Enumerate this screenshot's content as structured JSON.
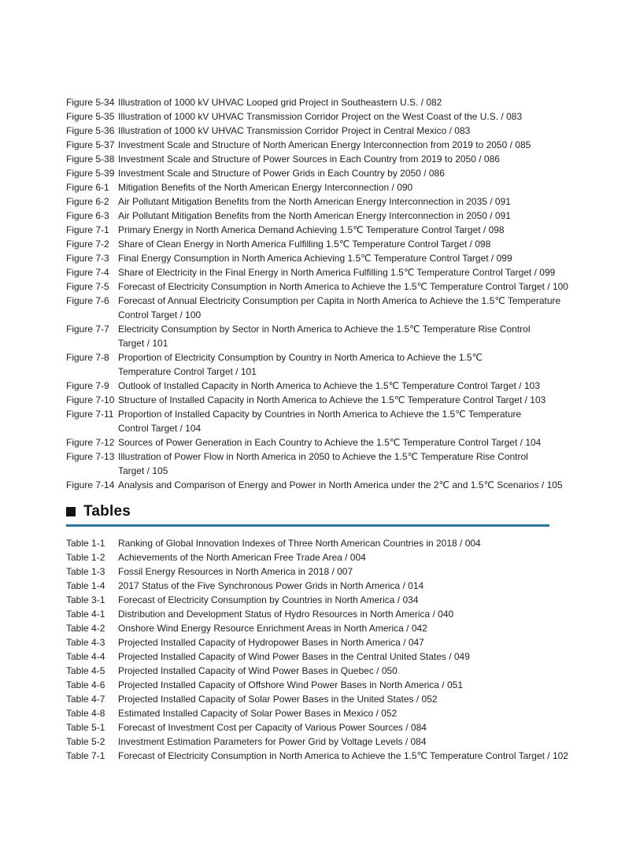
{
  "page": {
    "background_color": "#ffffff",
    "text_color": "#1e1e1e",
    "rule_color": "#2e739f"
  },
  "figures_list": {
    "items": [
      {
        "label": "Figure 5-34",
        "title": "Illustration of 1000 kV UHVAC Looped grid Project in Southeastern U.S. / 082"
      },
      {
        "label": "Figure 5-35",
        "title": "Illustration of 1000 kV UHVAC Transmission Corridor Project on the West Coast of the U.S. / 083"
      },
      {
        "label": "Figure 5-36",
        "title": "Illustration of 1000 kV UHVAC Transmission Corridor Project in Central Mexico / 083"
      },
      {
        "label": "Figure 5-37",
        "title": "Investment Scale and Structure of North American Energy Interconnection from 2019 to 2050 / 085"
      },
      {
        "label": "Figure 5-38",
        "title": "Investment Scale and Structure of Power Sources in Each Country from 2019 to 2050 / 086"
      },
      {
        "label": "Figure 5-39",
        "title": "Investment Scale and Structure of Power Grids in Each Country by 2050 / 086"
      },
      {
        "label": "Figure 6-1",
        "title": "Mitigation Benefits of the North American Energy Interconnection / 090"
      },
      {
        "label": "Figure 6-2",
        "title": "Air Pollutant Mitigation Benefits from the North American Energy Interconnection in 2035 / 091"
      },
      {
        "label": "Figure 6-3",
        "title": "Air Pollutant Mitigation Benefits from the North American Energy Interconnection in 2050 / 091"
      },
      {
        "label": "Figure 7-1",
        "title": "Primary Energy in North America Demand Achieving 1.5℃  Temperature Control Target / 098"
      },
      {
        "label": "Figure 7-2",
        "title": "Share of Clean Energy in North America Fulfilling 1.5℃  Temperature Control Target / 098"
      },
      {
        "label": "Figure 7-3",
        "title": "Final Energy Consumption in North America Achieving 1.5℃  Temperature Control Target / 099"
      },
      {
        "label": "Figure 7-4",
        "title": "Share of Electricity in the Final Energy in North America Fulfilling 1.5℃  Temperature Control Target / 099"
      },
      {
        "label": "Figure 7-5",
        "title": "Forecast of Electricity Consumption in North America to Achieve the 1.5℃  Temperature Control Target / 100"
      },
      {
        "label": "Figure 7-6",
        "title": "Forecast of Annual Electricity Consumption per Capita in North America to Achieve the 1.5℃  Temperature\nControl Target / 100"
      },
      {
        "label": "Figure 7-7",
        "title": "Electricity Consumption by Sector in North America to Achieve the 1.5℃  Temperature Rise Control\nTarget / 101"
      },
      {
        "label": "Figure 7-8",
        "title": "Proportion of Electricity Consumption by Country in North America to Achieve the 1.5℃\nTemperature Control Target / 101"
      },
      {
        "label": "Figure 7-9",
        "title": "Outlook of Installed Capacity in North America to Achieve the 1.5℃  Temperature Control Target / 103"
      },
      {
        "label": "Figure 7-10",
        "title": "Structure of Installed Capacity in North America to Achieve the 1.5℃  Temperature Control Target / 103"
      },
      {
        "label": "Figure 7-11",
        "title": "Proportion of Installed Capacity by Countries in North America to Achieve the 1.5℃  Temperature\nControl Target / 104"
      },
      {
        "label": "Figure 7-12",
        "title": "Sources of Power Generation in Each Country to Achieve the 1.5℃  Temperature Control Target / 104"
      },
      {
        "label": "Figure 7-13",
        "title": "Illustration of Power Flow in North America in 2050 to Achieve the 1.5℃  Temperature Rise Control\nTarget / 105"
      },
      {
        "label": "Figure 7-14",
        "title": "Analysis and Comparison of Energy and Power in North America under the 2℃  and 1.5℃  Scenarios / 105"
      }
    ]
  },
  "tables_section": {
    "heading": "Tables",
    "bullet_icon": "black-square",
    "items": [
      {
        "label": "Table 1-1",
        "title": "Ranking of Global Innovation Indexes of Three North American Countries in 2018 / 004"
      },
      {
        "label": "Table 1-2",
        "title": "Achievements of the North American Free Trade Area / 004"
      },
      {
        "label": "Table 1-3",
        "title": "Fossil Energy Resources in North America in 2018 / 007"
      },
      {
        "label": "Table 1-4",
        "title": "2017 Status of the Five Synchronous Power Grids in North America / 014"
      },
      {
        "label": "Table 3-1",
        "title": "Forecast of Electricity Consumption by Countries in North America / 034"
      },
      {
        "label": "Table 4-1",
        "title": "Distribution and Development Status of Hydro Resources in North America / 040"
      },
      {
        "label": "Table 4-2",
        "title": "Onshore Wind Energy Resource Enrichment Areas in North America / 042"
      },
      {
        "label": "Table 4-3",
        "title": "Projected Installed Capacity of Hydropower Bases in North America / 047"
      },
      {
        "label": "Table 4-4",
        "title": "Projected Installed Capacity of Wind Power Bases in the Central United States / 049"
      },
      {
        "label": "Table 4-5",
        "title": "Projected Installed Capacity of Wind Power Bases in Quebec / 050"
      },
      {
        "label": "Table 4-6",
        "title": "Projected Installed Capacity of Offshore Wind Power Bases in North America / 051"
      },
      {
        "label": "Table 4-7",
        "title": "Projected Installed Capacity of Solar Power Bases in the United States / 052"
      },
      {
        "label": "Table 4-8",
        "title": "Estimated Installed Capacity of Solar Power Bases in Mexico / 052"
      },
      {
        "label": "Table 5-1",
        "title": "Forecast of Investment Cost per Capacity of Various Power Sources / 084"
      },
      {
        "label": "Table 5-2",
        "title": "Investment Estimation Parameters for Power Grid by Voltage Levels / 084"
      },
      {
        "label": "Table 7-1",
        "title": "Forecast of Electricity Consumption in North America to Achieve the 1.5℃  Temperature Control Target / 102"
      }
    ]
  }
}
